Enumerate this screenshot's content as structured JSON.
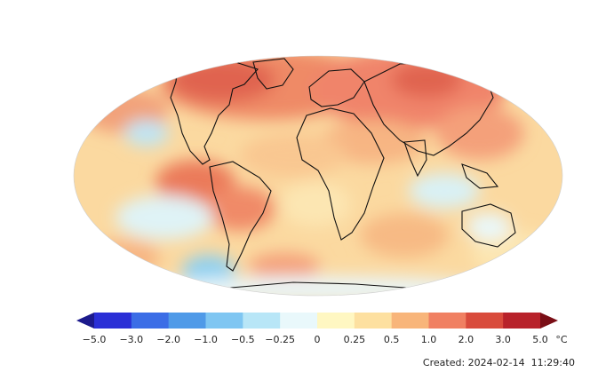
{
  "map": {
    "projection": "Robinson (world, Pacific-centered)",
    "variable": "temperature anomaly"
  },
  "colorbar": {
    "unit": "°C",
    "ticks": [
      "−5.0",
      "−3.0",
      "−2.0",
      "−1.0",
      "−0.5",
      "−0.25",
      "0",
      "0.25",
      "0.5",
      "1.0",
      "2.0",
      "3.0",
      "5.0"
    ],
    "bins": [
      "#2a2fd6",
      "#3b6de6",
      "#4f9ae8",
      "#7fc6f2",
      "#b8e6f7",
      "#e9f8fb",
      "#fff7c2",
      "#fde0a0",
      "#f8b57a",
      "#f08062",
      "#d94b3c",
      "#b8222a"
    ],
    "extend_low_color": "#1c1a8c",
    "extend_high_color": "#7a0e16"
  },
  "footer": {
    "created_label": "Created:",
    "created_date": "2024-02-14",
    "created_time": "11:29:40"
  }
}
